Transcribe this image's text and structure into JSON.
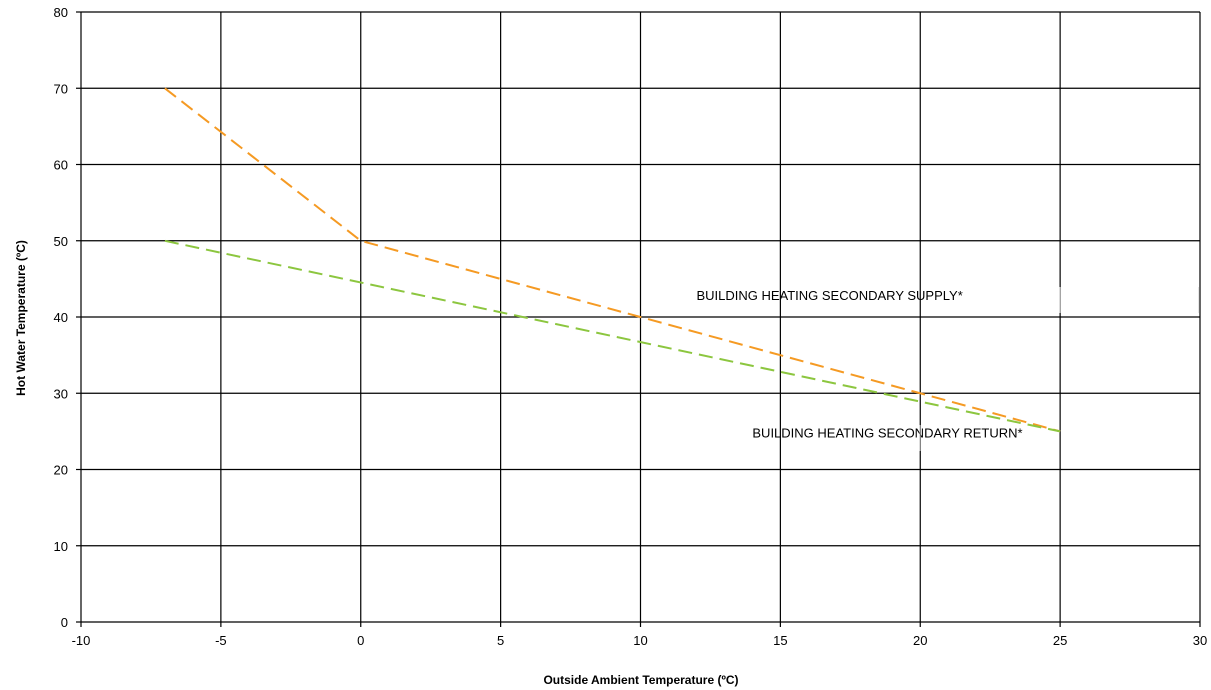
{
  "chart_data": {
    "type": "line",
    "title": "",
    "xlabel": "Outside Ambient Temperature (ºC)",
    "ylabel": "Hot Water Temperature (ºC)",
    "xlim": [
      -10,
      30
    ],
    "ylim": [
      0,
      80
    ],
    "xticks": [
      -10,
      -5,
      0,
      5,
      10,
      15,
      20,
      25,
      30
    ],
    "yticks": [
      0,
      10,
      20,
      30,
      40,
      50,
      60,
      70,
      80
    ],
    "grid": true,
    "legend": "none",
    "series": [
      {
        "id": "supply",
        "color": "#f59a23",
        "line_style": "dashed",
        "x": [
          -7,
          0,
          25
        ],
        "y": [
          70,
          50,
          25
        ]
      },
      {
        "id": "return",
        "color": "#8cc63f",
        "line_style": "dashed",
        "x": [
          -7,
          25
        ],
        "y": [
          50,
          25
        ]
      }
    ],
    "annotations": [
      {
        "id": "supply-label",
        "text": "BUILDING HEATING SECONDARY SUPPLY*",
        "x": 12.0,
        "y": 42.2
      },
      {
        "id": "return-label",
        "text": "BUILDING HEATING SECONDARY RETURN*",
        "x": 14.0,
        "y": 24.2
      }
    ]
  }
}
